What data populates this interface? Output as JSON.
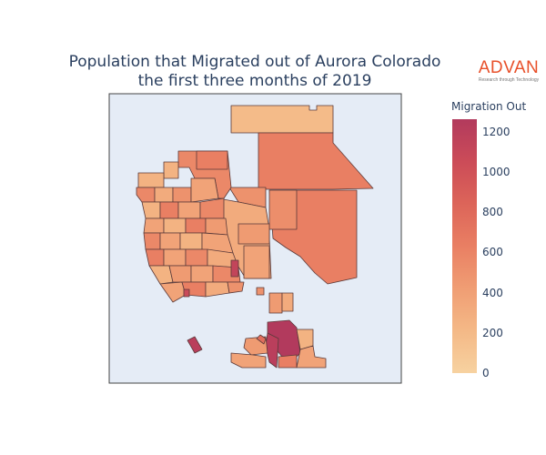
{
  "title_line1": "Population that Migrated out of Aurora Colorado",
  "title_line2": "the first three months of 2019",
  "logo": {
    "word": "ADVAN",
    "tagline": "Research through Technology",
    "color": "#e8502a"
  },
  "map": {
    "background": "#e5ecf6",
    "border_color": "#444444",
    "colorscale": [
      "#f7d2a0",
      "#f4b886",
      "#f09e74",
      "#e97f63",
      "#dc6459",
      "#cc4c58",
      "#b23a5d"
    ],
    "scale_min": 0,
    "scale_max": 1260
  },
  "colorbar": {
    "title": "Migration Out",
    "ticks": [
      "1200",
      "1000",
      "800",
      "600",
      "400",
      "200",
      "0"
    ]
  }
}
